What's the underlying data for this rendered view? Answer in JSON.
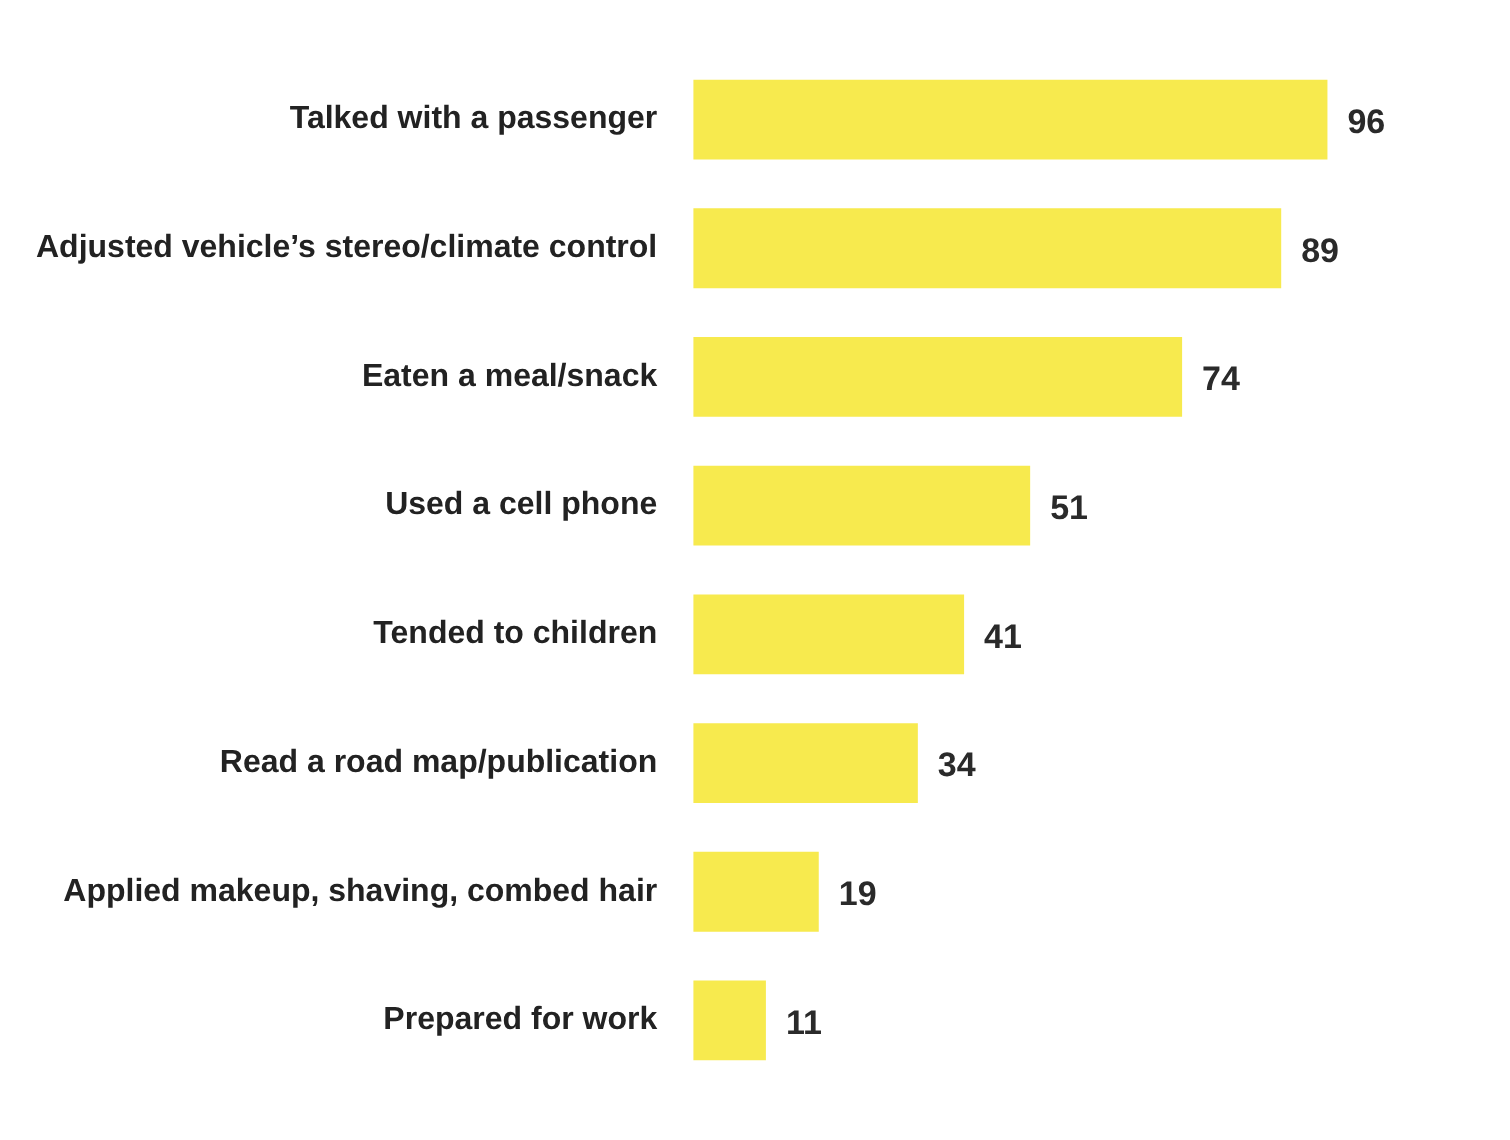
{
  "chart_data": {
    "type": "bar",
    "orientation": "horizontal",
    "categories": [
      "Talked with a passenger",
      "Adjusted vehicle’s stereo/climate control",
      "Eaten a meal/snack",
      "Used a cell phone",
      "Tended to children",
      "Read a road map/publication",
      "Applied makeup, shaving, combed hair",
      "Prepared for work"
    ],
    "values": [
      96,
      89,
      74,
      51,
      41,
      34,
      19,
      11
    ],
    "color": "#f7ea4e",
    "data_labels": true,
    "legend": false,
    "tick_labels": "y"
  }
}
